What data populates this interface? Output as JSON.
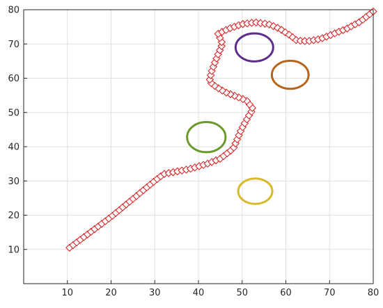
{
  "chart_data": {
    "type": "scatter",
    "title": "",
    "xlabel": "",
    "ylabel": "",
    "xlim": [
      0,
      80
    ],
    "ylim": [
      0,
      80
    ],
    "xticks": [
      10,
      20,
      30,
      40,
      50,
      60,
      70,
      80
    ],
    "yticks": [
      10,
      20,
      30,
      40,
      50,
      60,
      70,
      80
    ],
    "grid": true,
    "legend": "none",
    "colors": {
      "path": "#d62728",
      "axis": "#262626",
      "grid": "#e0e0e0",
      "ellipse_purple": "#5e2c8c",
      "ellipse_brown": "#b5651d",
      "ellipse_green": "#6a9a2b",
      "ellipse_yellow": "#d9b82a"
    },
    "path_waypoints": [
      [
        10.5,
        10.5
      ],
      [
        20,
        19.5
      ],
      [
        29.5,
        29.5
      ],
      [
        32,
        32
      ],
      [
        38,
        33.5
      ],
      [
        42,
        35
      ],
      [
        45,
        36.5
      ],
      [
        48,
        39.5
      ],
      [
        49.8,
        45
      ],
      [
        51.5,
        49
      ],
      [
        52.5,
        51
      ],
      [
        51,
        53.5
      ],
      [
        48,
        55
      ],
      [
        46,
        56
      ],
      [
        44,
        57.5
      ],
      [
        42.5,
        59
      ],
      [
        43,
        62
      ],
      [
        44.5,
        67
      ],
      [
        45.5,
        70
      ],
      [
        44.5,
        73
      ],
      [
        47,
        74.5
      ],
      [
        50,
        75.8
      ],
      [
        53,
        76.3
      ],
      [
        56,
        75.8
      ],
      [
        58.5,
        74.5
      ],
      [
        61,
        72.5
      ],
      [
        62.5,
        71
      ],
      [
        65,
        70.8
      ],
      [
        68,
        71.5
      ],
      [
        71,
        73
      ],
      [
        74,
        74.5
      ],
      [
        77,
        76.5
      ],
      [
        80,
        79.5
      ]
    ],
    "ellipses": [
      {
        "name": "purple",
        "cx": 52.8,
        "cy": 69,
        "rx": 4.3,
        "ry": 4.1,
        "color": "#5e2c8c"
      },
      {
        "name": "brown",
        "cx": 61,
        "cy": 61,
        "rx": 4.2,
        "ry": 4.1,
        "color": "#b5651d"
      },
      {
        "name": "green",
        "cx": 41.8,
        "cy": 42.8,
        "rx": 4.4,
        "ry": 4.4,
        "color": "#6a9a2b"
      },
      {
        "name": "yellow",
        "cx": 53,
        "cy": 27,
        "rx": 3.9,
        "ry": 3.7,
        "color": "#d9b82a"
      }
    ]
  }
}
